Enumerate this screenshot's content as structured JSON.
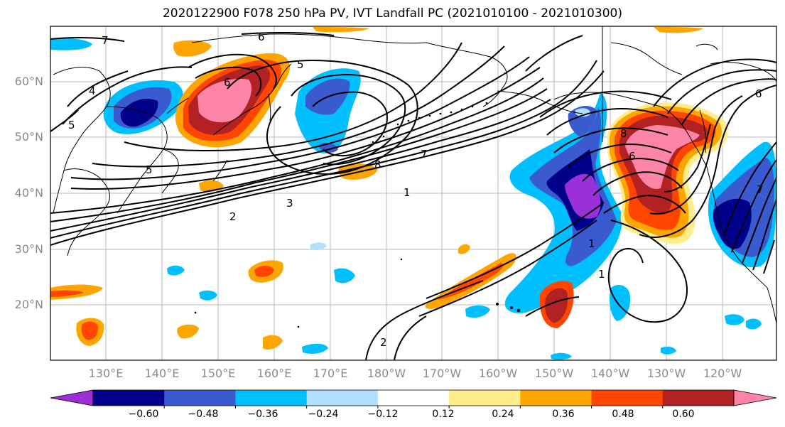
{
  "title": "2020122900 F078 250 hPa PV, IVT Landfall PC (2021010100 - 2021010300)",
  "lat_labels": [
    "60°N",
    "50°N",
    "40°N",
    "30°N",
    "20°N"
  ],
  "lon_labels": [
    "130°E",
    "140°E",
    "150°E",
    "160°E",
    "170°E",
    "180°W",
    "170°W",
    "160°W",
    "150°W",
    "140°W",
    "130°W",
    "120°W"
  ],
  "colorbar": {
    "colors": [
      "#9b30d9",
      "#00008b",
      "#3a5bd0",
      "#00bfff",
      "#b0e0ff",
      "#ffffff",
      "#ffec8b",
      "#ffa500",
      "#ff4500",
      "#b22222",
      "#ff85a8"
    ],
    "tick_labels": [
      "−0.60",
      "−0.48",
      "−0.36",
      "−0.24",
      "−0.12",
      "0.12",
      "0.24",
      "0.36",
      "0.48",
      "0.60"
    ]
  },
  "contour_labels": [
    "7",
    "6",
    "5",
    "4",
    "5",
    "6",
    "5",
    "8",
    "7",
    "1",
    "2",
    "3",
    "1",
    "1",
    "2",
    "8",
    "6",
    "6",
    "7"
  ]
}
